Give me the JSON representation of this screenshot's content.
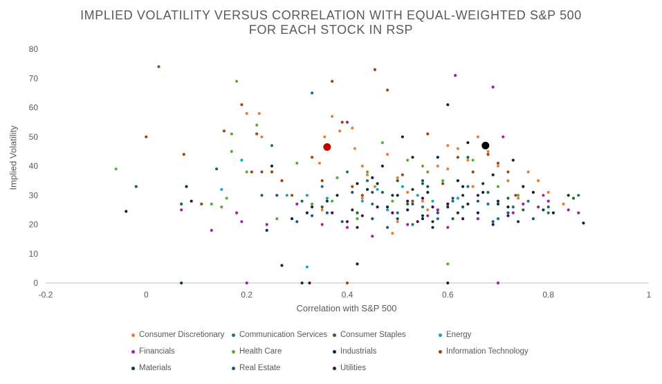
{
  "chart_data": {
    "type": "scatter",
    "title_lines": [
      "IMPLIED VOLATILITY VERSUS CORRELATION WITH EQUAL-WEIGHTED S&P 500",
      "FOR EACH STOCK IN RSP"
    ],
    "xlabel": "Correlation with S&P 500",
    "ylabel": "Implied Volatility",
    "xlim": [
      -0.2,
      1
    ],
    "ylim": [
      0,
      80
    ],
    "xticks": [
      -0.2,
      0,
      0.2,
      0.4,
      0.6,
      0.8,
      1
    ],
    "xtick_labels": [
      "-0.2",
      "0",
      "0.2",
      "0.4",
      "0.6",
      "0.8",
      "1"
    ],
    "yticks": [
      0,
      10,
      20,
      30,
      40,
      50,
      60,
      70,
      80
    ],
    "ytick_labels": [
      "0",
      "10",
      "20",
      "30",
      "40",
      "50",
      "60",
      "70",
      "80"
    ],
    "legend": [
      {
        "name": "Consumer Discretionary",
        "color": "#ED7D31"
      },
      {
        "name": "Communication Services",
        "color": "#1F6E8C"
      },
      {
        "name": "Consumer Staples",
        "color": "#1E6B2F"
      },
      {
        "name": "Energy",
        "color": "#17A2C8"
      },
      {
        "name": "Financials",
        "color": "#A020A0"
      },
      {
        "name": "Health Care",
        "color": "#5BAA34"
      },
      {
        "name": "Industrials",
        "color": "#0C2340"
      },
      {
        "name": "Information Technology",
        "color": "#A0430C"
      },
      {
        "name": "Materials",
        "color": "#0D3B1E"
      },
      {
        "name": "Real Estate",
        "color": "#16587A"
      },
      {
        "name": "Utilities",
        "color": "#4B0A4F"
      }
    ],
    "highlights": [
      {
        "x": 0.36,
        "y": 46.5,
        "color": "#C00000"
      },
      {
        "x": 0.675,
        "y": 47,
        "color": "#000000"
      }
    ],
    "series": [
      {
        "name": "Consumer Discretionary",
        "points": [
          [
            0.2,
            58
          ],
          [
            0.225,
            58
          ],
          [
            0.23,
            50
          ],
          [
            0.345,
            41
          ],
          [
            0.355,
            50
          ],
          [
            0.37,
            57
          ],
          [
            0.385,
            52
          ],
          [
            0.41,
            53
          ],
          [
            0.415,
            46
          ],
          [
            0.43,
            40
          ],
          [
            0.44,
            37
          ],
          [
            0.455,
            33
          ],
          [
            0.48,
            44
          ],
          [
            0.5,
            36
          ],
          [
            0.52,
            31
          ],
          [
            0.55,
            28
          ],
          [
            0.58,
            40
          ],
          [
            0.6,
            39
          ],
          [
            0.62,
            46
          ],
          [
            0.64,
            42
          ],
          [
            0.66,
            50
          ],
          [
            0.68,
            45
          ],
          [
            0.7,
            40
          ],
          [
            0.72,
            35
          ],
          [
            0.76,
            38
          ],
          [
            0.78,
            35
          ],
          [
            0.8,
            31
          ],
          [
            0.83,
            27
          ],
          [
            0.43,
            29
          ],
          [
            0.5,
            21
          ],
          [
            0.56,
            25
          ],
          [
            0.6,
            47
          ],
          [
            0.49,
            17
          ],
          [
            0.35,
            25
          ],
          [
            0.65,
            33
          ],
          [
            0.74,
            29
          ]
        ]
      },
      {
        "name": "Communication Services",
        "points": [
          [
            0.33,
            65
          ],
          [
            0.35,
            33
          ],
          [
            0.4,
            38
          ],
          [
            0.45,
            27
          ],
          [
            0.5,
            24
          ],
          [
            0.55,
            26
          ],
          [
            0.58,
            22
          ],
          [
            0.61,
            28
          ],
          [
            0.64,
            33
          ],
          [
            0.68,
            27
          ],
          [
            0.7,
            22
          ],
          [
            0.73,
            26
          ],
          [
            0.76,
            28
          ],
          [
            0.8,
            24
          ],
          [
            0.86,
            30
          ],
          [
            0.25,
            47
          ],
          [
            0.44,
            35
          ],
          [
            0.53,
            20
          ]
        ]
      },
      {
        "name": "Consumer Staples",
        "points": [
          [
            -0.02,
            33
          ],
          [
            0.07,
            27
          ],
          [
            0.14,
            39
          ],
          [
            0.23,
            30
          ],
          [
            0.31,
            28
          ],
          [
            0.35,
            26
          ],
          [
            0.42,
            24
          ],
          [
            0.47,
            31
          ],
          [
            0.52,
            27
          ],
          [
            0.55,
            34
          ],
          [
            0.58,
            25
          ],
          [
            0.61,
            22
          ],
          [
            0.64,
            43
          ],
          [
            0.68,
            31
          ],
          [
            0.72,
            29
          ],
          [
            0.75,
            25
          ],
          [
            0.8,
            26
          ],
          [
            0.85,
            29
          ],
          [
            0.5,
            35
          ],
          [
            0.6,
            27
          ]
        ]
      },
      {
        "name": "Energy",
        "points": [
          [
            0.15,
            32
          ],
          [
            0.19,
            42
          ],
          [
            0.28,
            30
          ],
          [
            0.32,
            30
          ],
          [
            0.36,
            29
          ],
          [
            0.43,
            28
          ],
          [
            0.46,
            32
          ],
          [
            0.48,
            25
          ],
          [
            0.51,
            33
          ],
          [
            0.54,
            30
          ],
          [
            0.57,
            28
          ],
          [
            0.62,
            29
          ],
          [
            0.32,
            5.5
          ]
        ]
      },
      {
        "name": "Financials",
        "points": [
          [
            0.07,
            25
          ],
          [
            0.13,
            18
          ],
          [
            0.18,
            24
          ],
          [
            0.19,
            21
          ],
          [
            0.24,
            20
          ],
          [
            0.3,
            27
          ],
          [
            0.35,
            20
          ],
          [
            0.4,
            19
          ],
          [
            0.45,
            16
          ],
          [
            0.52,
            20
          ],
          [
            0.56,
            23
          ],
          [
            0.6,
            19
          ],
          [
            0.615,
            71
          ],
          [
            0.69,
            67
          ],
          [
            0.71,
            50
          ],
          [
            0.75,
            27
          ],
          [
            0.79,
            30
          ],
          [
            0.8,
            28
          ],
          [
            0.84,
            25
          ],
          [
            0.86,
            24
          ],
          [
            0.66,
            22
          ],
          [
            0.73,
            24
          ],
          [
            0.2,
            0
          ],
          [
            0.7,
            0
          ],
          [
            0.78,
            26
          ],
          [
            0.4,
            55
          ],
          [
            0.58,
            25
          ]
        ]
      },
      {
        "name": "Health Care",
        "points": [
          [
            -0.06,
            39
          ],
          [
            0.13,
            27
          ],
          [
            0.15,
            26
          ],
          [
            0.17,
            45
          ],
          [
            0.17,
            51
          ],
          [
            0.18,
            69
          ],
          [
            0.2,
            38
          ],
          [
            0.22,
            54
          ],
          [
            0.3,
            41
          ],
          [
            0.33,
            27
          ],
          [
            0.37,
            28
          ],
          [
            0.38,
            36
          ],
          [
            0.44,
            38
          ],
          [
            0.47,
            48
          ],
          [
            0.52,
            42
          ],
          [
            0.55,
            40
          ],
          [
            0.59,
            35
          ],
          [
            0.6,
            6.5
          ],
          [
            0.65,
            42
          ],
          [
            0.7,
            33
          ],
          [
            0.74,
            30
          ],
          [
            0.16,
            29
          ],
          [
            0.26,
            22
          ],
          [
            0.42,
            22
          ],
          [
            0.49,
            28
          ],
          [
            0.56,
            38
          ]
        ]
      },
      {
        "name": "Industrials",
        "points": [
          [
            -0.04,
            24.5
          ],
          [
            0.09,
            28
          ],
          [
            0.25,
            40
          ],
          [
            0.29,
            22
          ],
          [
            0.32,
            24
          ],
          [
            0.38,
            30
          ],
          [
            0.42,
            6.5
          ],
          [
            0.44,
            32
          ],
          [
            0.47,
            40
          ],
          [
            0.5,
            30
          ],
          [
            0.53,
            43
          ],
          [
            0.56,
            31
          ],
          [
            0.58,
            43
          ],
          [
            0.6,
            61
          ],
          [
            0.62,
            35
          ],
          [
            0.64,
            27
          ],
          [
            0.67,
            31
          ],
          [
            0.7,
            28
          ],
          [
            0.73,
            42
          ],
          [
            0.77,
            31
          ],
          [
            0.81,
            24
          ],
          [
            0.87,
            20.5
          ],
          [
            0.6,
            0
          ],
          [
            0.45,
            36
          ],
          [
            0.52,
            25
          ],
          [
            0.55,
            22
          ],
          [
            0.63,
            33
          ],
          [
            0.66,
            24
          ],
          [
            0.69,
            37
          ],
          [
            0.72,
            26
          ],
          [
            0.75,
            33
          ],
          [
            0.51,
            50
          ],
          [
            0.48,
            26
          ],
          [
            0.42,
            34
          ],
          [
            0.57,
            19
          ],
          [
            0.64,
            48
          ]
        ]
      },
      {
        "name": "Information Technology",
        "points": [
          [
            0.0,
            50
          ],
          [
            0.025,
            74
          ],
          [
            0.075,
            44
          ],
          [
            0.11,
            27
          ],
          [
            0.155,
            52
          ],
          [
            0.19,
            61
          ],
          [
            0.22,
            51
          ],
          [
            0.23,
            38
          ],
          [
            0.25,
            38
          ],
          [
            0.27,
            35
          ],
          [
            0.33,
            43
          ],
          [
            0.35,
            35
          ],
          [
            0.37,
            69
          ],
          [
            0.39,
            55
          ],
          [
            0.41,
            33
          ],
          [
            0.455,
            73
          ],
          [
            0.48,
            66
          ],
          [
            0.51,
            37
          ],
          [
            0.53,
            28
          ],
          [
            0.56,
            51
          ],
          [
            0.59,
            34
          ],
          [
            0.62,
            43
          ],
          [
            0.65,
            38
          ],
          [
            0.68,
            44
          ],
          [
            0.7,
            41
          ],
          [
            0.72,
            38
          ],
          [
            0.735,
            30
          ],
          [
            0.4,
            0
          ],
          [
            0.21,
            38
          ],
          [
            0.29,
            30
          ],
          [
            0.43,
            30
          ]
        ]
      },
      {
        "name": "Materials",
        "points": [
          [
            0.07,
            0
          ],
          [
            0.08,
            33
          ],
          [
            0.24,
            18
          ],
          [
            0.27,
            6
          ],
          [
            0.31,
            0
          ],
          [
            0.33,
            26
          ],
          [
            0.36,
            28
          ],
          [
            0.41,
            25
          ],
          [
            0.46,
            34
          ],
          [
            0.49,
            30
          ],
          [
            0.53,
            32
          ],
          [
            0.57,
            21
          ],
          [
            0.6,
            26
          ],
          [
            0.63,
            30
          ],
          [
            0.67,
            34
          ],
          [
            0.7,
            27
          ],
          [
            0.74,
            21
          ],
          [
            0.79,
            25
          ],
          [
            0.84,
            30
          ],
          [
            0.55,
            23
          ],
          [
            0.62,
            24
          ]
        ]
      },
      {
        "name": "Real Estate",
        "points": [
          [
            0.26,
            30
          ],
          [
            0.3,
            21
          ],
          [
            0.33,
            23
          ],
          [
            0.36,
            24
          ],
          [
            0.39,
            21
          ],
          [
            0.41,
            31
          ],
          [
            0.45,
            22
          ],
          [
            0.48,
            19
          ],
          [
            0.5,
            22
          ],
          [
            0.53,
            27
          ],
          [
            0.56,
            33
          ],
          [
            0.58,
            24
          ],
          [
            0.61,
            29
          ],
          [
            0.63,
            26
          ],
          [
            0.66,
            28
          ],
          [
            0.69,
            21
          ],
          [
            0.72,
            24
          ],
          [
            0.77,
            22
          ],
          [
            0.45,
            31
          ],
          [
            0.55,
            35
          ]
        ]
      },
      {
        "name": "Utilities",
        "points": [
          [
            0.325,
            0
          ],
          [
            0.37,
            24
          ],
          [
            0.4,
            21
          ],
          [
            0.43,
            23
          ],
          [
            0.46,
            26
          ],
          [
            0.49,
            24
          ],
          [
            0.52,
            28
          ],
          [
            0.54,
            21
          ],
          [
            0.57,
            26
          ],
          [
            0.6,
            27
          ],
          [
            0.63,
            22
          ],
          [
            0.66,
            30
          ],
          [
            0.69,
            20
          ],
          [
            0.72,
            23
          ],
          [
            0.42,
            19
          ],
          [
            0.55,
            29
          ]
        ]
      }
    ]
  }
}
